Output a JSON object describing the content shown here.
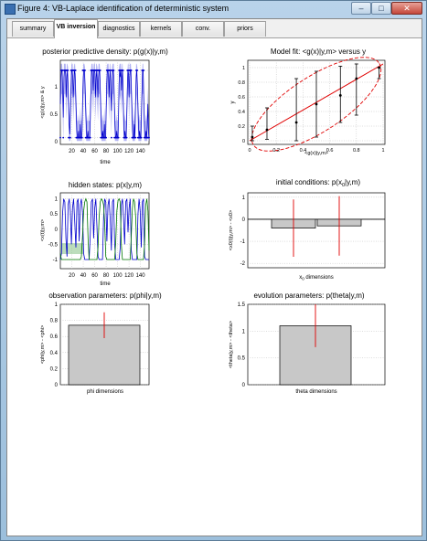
{
  "window": {
    "title": "Figure 4: VB-Laplace identification of deterministic system",
    "controls": {
      "minimize": "–",
      "maximize": "□",
      "close": "✕"
    }
  },
  "tabs": [
    {
      "label": "summary"
    },
    {
      "label": "VB inversion",
      "active": true
    },
    {
      "label": "diagnostics"
    },
    {
      "label": "kernels"
    },
    {
      "label": "conv."
    },
    {
      "label": "priors"
    }
  ],
  "colors": {
    "blue": "#0000cc",
    "blueBand": "#9fa0f0",
    "green": "#007700",
    "red": "#e00000",
    "bar": "#c8c8c8"
  },
  "panels": {
    "ppd": {
      "title": "posterior predictive density: p(g(x)|y,m)",
      "ylabel": "<g(x)|y,m> & y",
      "xlabel": "time",
      "yticks": [
        "0",
        "0.5",
        "1"
      ],
      "xticks": [
        "20",
        "40",
        "60",
        "80",
        "100",
        "120",
        "140"
      ]
    },
    "fit": {
      "title": "Model fit: <g(x)|y,m> versus y",
      "ylabel": "y",
      "xlabel": "<g(x)|y,m>",
      "yticks": [
        "0",
        "0.2",
        "0.4",
        "0.6",
        "0.8",
        "1"
      ],
      "xticks": [
        "0",
        "0.2",
        "0.4",
        "0.6",
        "0.8",
        "1"
      ]
    },
    "hidden": {
      "title": "hidden states: p(x|y,m)",
      "ylabel": "<x(t)|y,m>",
      "xlabel": "time",
      "yticks": [
        "1",
        "0.5",
        "0",
        "-0.5",
        "-1"
      ],
      "xticks": [
        "20",
        "40",
        "60",
        "80",
        "100",
        "120",
        "140"
      ]
    },
    "init": {
      "title": "initial conditions: p(x",
      "title_sub": "0",
      "title_end": "|y,m)",
      "ylabel": "<x0(t)|y,m> - <x0>",
      "xlabel": "x",
      "xlabel_sub": "0",
      "xlabel_end": " dimensions",
      "yticks": [
        "1",
        "0",
        "-1",
        "-2"
      ]
    },
    "obs": {
      "title": "observation parameters: p(phi|y,m)",
      "ylabel": "<phi|y,m> - <phi>",
      "xlabel": "phi dimensions",
      "yticks": [
        "1",
        "0.8",
        "0.6",
        "0.4",
        "0.2",
        "0"
      ]
    },
    "evo": {
      "title": "evolution parameters: p(theta|y,m)",
      "ylabel": "<theta|y,m> - <theta>",
      "xlabel": "theta dimensions",
      "yticks": [
        "1.5",
        "1",
        "0.5",
        "0"
      ]
    }
  },
  "chart_data": [
    {
      "type": "line",
      "title": "posterior predictive density: p(g(x)|y,m)",
      "xlabel": "time",
      "ylabel": "<g(x)|y,m> & y",
      "xlim": [
        0,
        155
      ],
      "ylim": [
        -0.1,
        1.15
      ],
      "series": [
        {
          "values": [
            0.5,
            0.9,
            1,
            1,
            0.7,
            0.3,
            0.9,
            1,
            1,
            0.95,
            0.6,
            0.9,
            1,
            0.8,
            0.5,
            0.2,
            0.05,
            0.3,
            0.7,
            1,
            1,
            0.9,
            0.6,
            0.8,
            1,
            0.95,
            0.7,
            0.4,
            0.1,
            0,
            0,
            0.1,
            0,
            0,
            0.2,
            0,
            0,
            0.1,
            0.6,
            0.9,
            1,
            1,
            0.8,
            0.5,
            0.2,
            0,
            0,
            0.1,
            0,
            0,
            0,
            0.3,
            0.7,
            1,
            1,
            0.9,
            0.7,
            1,
            1,
            0.95,
            0.6,
            0.9,
            1,
            0.8,
            0.6,
            0.9,
            1,
            1,
            0.7,
            0.4,
            0.1,
            0,
            0.1,
            0,
            0,
            0.2,
            0,
            0,
            0.4,
            0.8,
            1,
            1,
            0.9,
            0.6,
            0.9,
            1,
            0.7,
            0.4,
            0.8,
            1,
            1,
            0.9,
            0.5,
            0.2,
            0,
            0,
            0.1,
            0,
            0,
            0.3,
            0.8,
            1,
            0.9,
            1,
            0.7,
            0.9,
            1,
            0.6,
            0.2,
            0,
            0.1,
            0,
            0,
            0.3,
            0.7,
            1,
            0.95,
            0.6,
            0.9,
            1,
            1,
            0.7,
            0.4,
            0.1,
            0,
            0,
            0.2,
            0,
            0.5,
            0.9,
            1,
            0.8,
            0.5,
            0.2,
            0,
            0.1,
            0,
            0,
            0.3,
            0.7,
            1,
            1,
            0.6,
            0.2,
            0,
            0,
            0.1,
            0,
            0.2,
            0.5,
            0.1,
            0
          ]
        }
      ]
    },
    {
      "type": "scatter",
      "title": "Model fit: <g(x)|y,m> versus y",
      "xlabel": "<g(x)|y,m>",
      "ylabel": "y",
      "xlim": [
        0,
        1
      ],
      "ylim": [
        -0.05,
        1.1
      ],
      "points": [
        {
          "x": 0.02,
          "y": 0.05,
          "lo": 0.0,
          "hi": 0.2
        },
        {
          "x": 0.13,
          "y": 0.15,
          "lo": 0.02,
          "hi": 0.45
        },
        {
          "x": 0.35,
          "y": 0.25,
          "lo": 0.0,
          "hi": 0.85
        },
        {
          "x": 0.5,
          "y": 0.5,
          "lo": 0.05,
          "hi": 0.95
        },
        {
          "x": 0.68,
          "y": 0.62,
          "lo": 0.25,
          "hi": 1.02
        },
        {
          "x": 0.8,
          "y": 0.85,
          "lo": 0.35,
          "hi": 1.05
        },
        {
          "x": 0.97,
          "y": 1.0,
          "lo": 0.85,
          "hi": 1.0
        }
      ]
    },
    {
      "type": "line",
      "title": "hidden states: p(x|y,m)",
      "xlabel": "time",
      "ylabel": "<x(t)|y,m>",
      "xlim": [
        0,
        155
      ],
      "ylim": [
        -1.3,
        1.2
      ],
      "series": [
        {
          "values": [
            -1,
            -0.8,
            0.5,
            1,
            0.9,
            -0.3,
            -0.9,
            0.8,
            1,
            0.6,
            -0.5,
            0.7,
            1,
            0.2,
            -0.6,
            0.9,
            1,
            -0.4,
            0.8,
            1,
            0.5,
            -0.8,
            -1,
            -1,
            -1,
            -1,
            -1,
            -0.2,
            0.9,
            1,
            -0.3,
            0.7,
            1,
            0.1,
            -0.9,
            -1,
            -1,
            -1,
            -1,
            0.4,
            1,
            0.9,
            -0.4,
            0.8,
            1,
            0.3,
            -0.7,
            0.9,
            1,
            -0.5,
            -1,
            -1,
            -1,
            -1,
            -0.6,
            0.8,
            1,
            0.4,
            -0.5,
            0.9,
            1,
            -0.1,
            0.7,
            1,
            -0.7,
            -1,
            -1,
            -1,
            -1,
            -1,
            0.5,
            1,
            0.6,
            -0.6,
            0.9,
            1,
            -0.9,
            -1,
            -1,
            -1,
            -1
          ]
        },
        {
          "values": [
            -0.8,
            -1,
            -1,
            -1,
            -1,
            -1,
            -1,
            -1,
            -1,
            -1,
            -1,
            -1,
            -1,
            -1,
            -1,
            -1,
            -1,
            -1,
            -1,
            -0.9,
            -0.2,
            0.6,
            0.9,
            1,
            0.9,
            -0.3,
            -1,
            -1,
            -1,
            -1,
            -1,
            -1,
            -1,
            -1,
            -0.6,
            0.4,
            0.9,
            1,
            0.95,
            0.8,
            0.2,
            -0.9,
            -1,
            -1,
            -1,
            -1,
            -1,
            -1,
            -1,
            -1,
            -0.4,
            0.6,
            0.95,
            1,
            0.9,
            -0.5,
            -1,
            -1,
            -1,
            -1,
            -1,
            -1,
            -1,
            -1,
            -0.2,
            0.7,
            1,
            0.9,
            0.4,
            -0.8,
            -1,
            -1,
            -1,
            -1,
            -1,
            -1,
            -0.5,
            0.8,
            1,
            0.6,
            -0.7
          ]
        }
      ]
    },
    {
      "type": "bar",
      "title": "initial conditions: p(x0|y,m)",
      "xlabel": "x0 dimensions",
      "ylabel": "<x0(t)|y,m> - <x0>",
      "ylim": [
        -2.2,
        1.2
      ],
      "values": [
        -0.4,
        -0.3
      ],
      "errors": [
        1.3,
        1.35
      ]
    },
    {
      "type": "bar",
      "title": "observation parameters: p(phi|y,m)",
      "xlabel": "phi dimensions",
      "ylabel": "<phi|y,m> - <phi>",
      "ylim": [
        0,
        1
      ],
      "values": [
        0.74
      ],
      "errors": [
        0.16
      ]
    },
    {
      "type": "bar",
      "title": "evolution parameters: p(theta|y,m)",
      "xlabel": "theta dimensions",
      "ylabel": "<theta|y,m> - <theta>",
      "ylim": [
        0,
        1.5
      ],
      "values": [
        1.1
      ],
      "errors": [
        0.4
      ]
    }
  ]
}
